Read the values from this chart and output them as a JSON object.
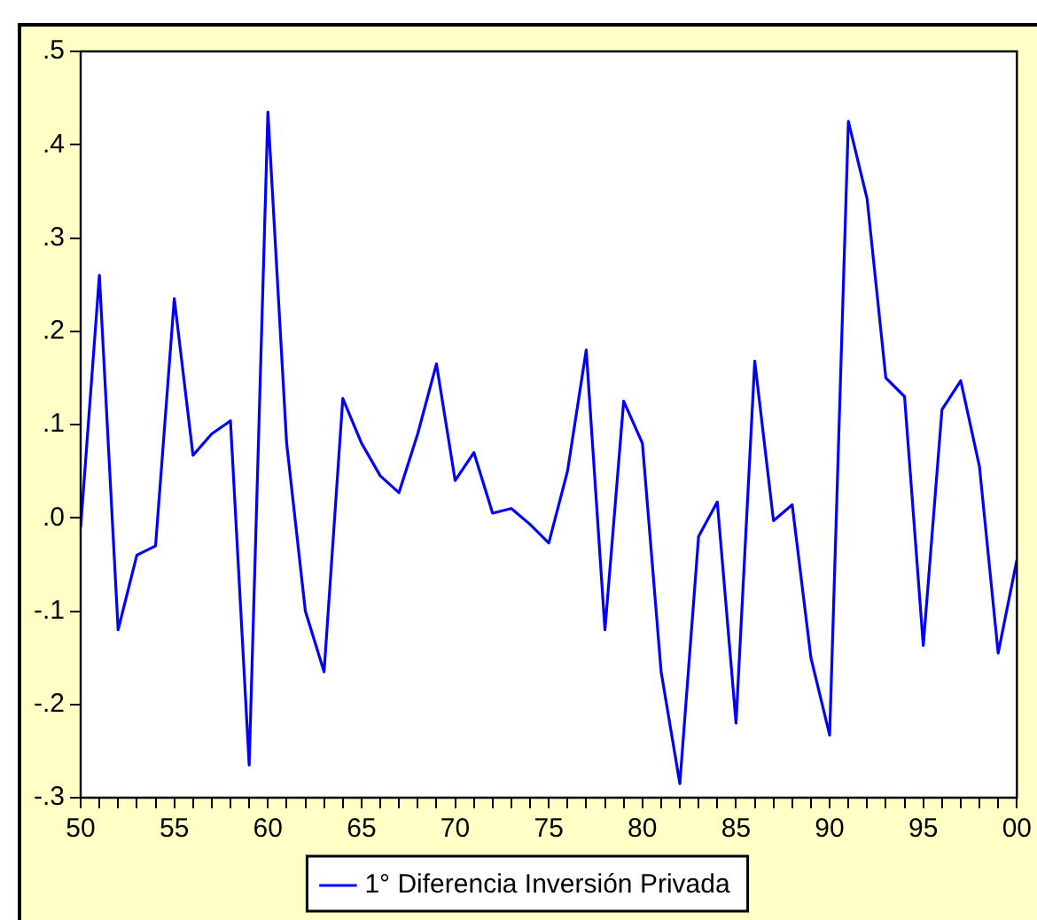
{
  "chart_data": {
    "type": "line",
    "x": [
      1950,
      1951,
      1952,
      1953,
      1954,
      1955,
      1956,
      1957,
      1958,
      1959,
      1960,
      1961,
      1962,
      1963,
      1964,
      1965,
      1966,
      1967,
      1968,
      1969,
      1970,
      1971,
      1972,
      1973,
      1974,
      1975,
      1976,
      1977,
      1978,
      1979,
      1980,
      1981,
      1982,
      1983,
      1984,
      1985,
      1986,
      1987,
      1988,
      1989,
      1990,
      1991,
      1992,
      1993,
      1994,
      1995,
      1996,
      1997,
      1998,
      1999,
      2000
    ],
    "series": [
      {
        "name": "1° Diferencia Inversión Privada",
        "color": "#0000ff",
        "values": [
          -0.01,
          0.26,
          -0.12,
          -0.04,
          -0.03,
          0.235,
          0.067,
          0.09,
          0.104,
          -0.265,
          0.435,
          0.08,
          -0.1,
          -0.165,
          0.128,
          0.08,
          0.045,
          0.027,
          0.09,
          0.165,
          0.04,
          0.07,
          0.005,
          0.01,
          -0.007,
          -0.027,
          0.05,
          0.18,
          -0.12,
          0.125,
          0.08,
          -0.165,
          -0.285,
          -0.02,
          0.017,
          -0.22,
          0.168,
          -0.003,
          0.014,
          -0.15,
          -0.233,
          0.425,
          0.342,
          0.15,
          0.13,
          -0.137,
          0.116,
          0.147,
          0.055,
          -0.145,
          -0.045
        ]
      }
    ],
    "xlim": [
      1950,
      2000
    ],
    "xticks": [
      {
        "value": 1950,
        "label": "50"
      },
      {
        "value": 1951,
        "label": null
      },
      {
        "value": 1952,
        "label": null
      },
      {
        "value": 1953,
        "label": null
      },
      {
        "value": 1954,
        "label": null
      },
      {
        "value": 1955,
        "label": "55"
      },
      {
        "value": 1956,
        "label": null
      },
      {
        "value": 1957,
        "label": null
      },
      {
        "value": 1958,
        "label": null
      },
      {
        "value": 1959,
        "label": null
      },
      {
        "value": 1960,
        "label": "60"
      },
      {
        "value": 1961,
        "label": null
      },
      {
        "value": 1962,
        "label": null
      },
      {
        "value": 1963,
        "label": null
      },
      {
        "value": 1964,
        "label": null
      },
      {
        "value": 1965,
        "label": "65"
      },
      {
        "value": 1966,
        "label": null
      },
      {
        "value": 1967,
        "label": null
      },
      {
        "value": 1968,
        "label": null
      },
      {
        "value": 1969,
        "label": null
      },
      {
        "value": 1970,
        "label": "70"
      },
      {
        "value": 1971,
        "label": null
      },
      {
        "value": 1972,
        "label": null
      },
      {
        "value": 1973,
        "label": null
      },
      {
        "value": 1974,
        "label": null
      },
      {
        "value": 1975,
        "label": "75"
      },
      {
        "value": 1976,
        "label": null
      },
      {
        "value": 1977,
        "label": null
      },
      {
        "value": 1978,
        "label": null
      },
      {
        "value": 1979,
        "label": null
      },
      {
        "value": 1980,
        "label": "80"
      },
      {
        "value": 1981,
        "label": null
      },
      {
        "value": 1982,
        "label": null
      },
      {
        "value": 1983,
        "label": null
      },
      {
        "value": 1984,
        "label": null
      },
      {
        "value": 1985,
        "label": "85"
      },
      {
        "value": 1986,
        "label": null
      },
      {
        "value": 1987,
        "label": null
      },
      {
        "value": 1988,
        "label": null
      },
      {
        "value": 1989,
        "label": null
      },
      {
        "value": 1990,
        "label": "90"
      },
      {
        "value": 1991,
        "label": null
      },
      {
        "value": 1992,
        "label": null
      },
      {
        "value": 1993,
        "label": null
      },
      {
        "value": 1994,
        "label": null
      },
      {
        "value": 1995,
        "label": "95"
      },
      {
        "value": 1996,
        "label": null
      },
      {
        "value": 1997,
        "label": null
      },
      {
        "value": 1998,
        "label": null
      },
      {
        "value": 1999,
        "label": null
      },
      {
        "value": 2000,
        "label": "00"
      }
    ],
    "ylim": [
      -0.3,
      0.5
    ],
    "yticks": [
      {
        "value": -0.3,
        "label": "-.3"
      },
      {
        "value": -0.2,
        "label": "-.2"
      },
      {
        "value": -0.1,
        "label": "-.1"
      },
      {
        "value": 0,
        "label": ".0"
      },
      {
        "value": 0.1,
        "label": ".1"
      },
      {
        "value": 0.2,
        "label": ".2"
      },
      {
        "value": 0.3,
        "label": ".3"
      },
      {
        "value": 0.4,
        "label": ".4"
      },
      {
        "value": 0.5,
        "label": ".5"
      }
    ],
    "grid": false,
    "legend": "bottom",
    "marker": "none",
    "line_style": "solid"
  }
}
